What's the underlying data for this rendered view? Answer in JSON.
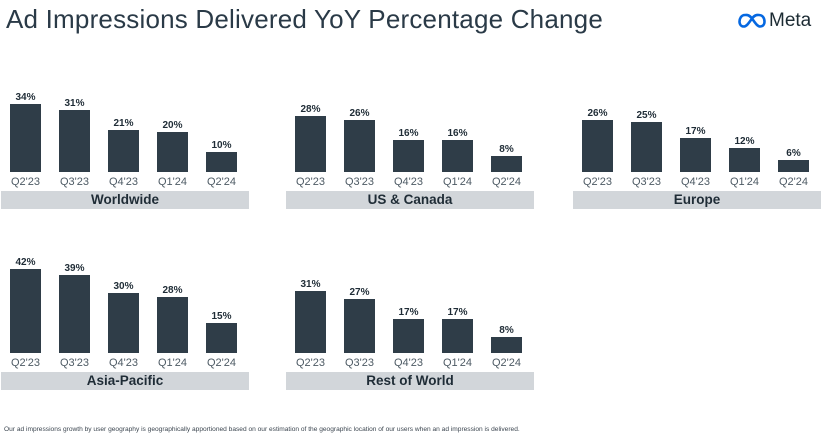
{
  "title": "Ad Impressions Delivered YoY Percentage Change",
  "logo": {
    "text": "Meta",
    "icon": "meta-infinity-icon",
    "color": "#0668E1"
  },
  "colors": {
    "bar": "#2f3d48",
    "label_band": "#d2d6da"
  },
  "footnote": "Our ad impressions growth by user geography is geographically apportioned based on our estimation of the geographic location of our users when an ad impression is delivered.",
  "chart_data": [
    {
      "type": "bar",
      "title": "Worldwide",
      "categories": [
        "Q2'23",
        "Q3'23",
        "Q4'23",
        "Q1'24",
        "Q2'24"
      ],
      "values": [
        34,
        31,
        21,
        20,
        10
      ],
      "labels": [
        "34%",
        "31%",
        "21%",
        "20%",
        "10%"
      ]
    },
    {
      "type": "bar",
      "title": "US & Canada",
      "categories": [
        "Q2'23",
        "Q3'23",
        "Q4'23",
        "Q1'24",
        "Q2'24"
      ],
      "values": [
        28,
        26,
        16,
        16,
        8
      ],
      "labels": [
        "28%",
        "26%",
        "16%",
        "16%",
        "8%"
      ]
    },
    {
      "type": "bar",
      "title": "Europe",
      "categories": [
        "Q2'23",
        "Q3'23",
        "Q4'23",
        "Q1'24",
        "Q2'24"
      ],
      "values": [
        26,
        25,
        17,
        12,
        6
      ],
      "labels": [
        "26%",
        "25%",
        "17%",
        "12%",
        "6%"
      ]
    },
    {
      "type": "bar",
      "title": "Asia-Pacific",
      "categories": [
        "Q2'23",
        "Q3'23",
        "Q4'23",
        "Q1'24",
        "Q2'24"
      ],
      "values": [
        42,
        39,
        30,
        28,
        15
      ],
      "labels": [
        "42%",
        "39%",
        "30%",
        "28%",
        "15%"
      ]
    },
    {
      "type": "bar",
      "title": "Rest of World",
      "categories": [
        "Q2'23",
        "Q3'23",
        "Q4'23",
        "Q1'24",
        "Q2'24"
      ],
      "values": [
        31,
        27,
        17,
        17,
        8
      ],
      "labels": [
        "31%",
        "27%",
        "17%",
        "17%",
        "8%"
      ]
    }
  ]
}
